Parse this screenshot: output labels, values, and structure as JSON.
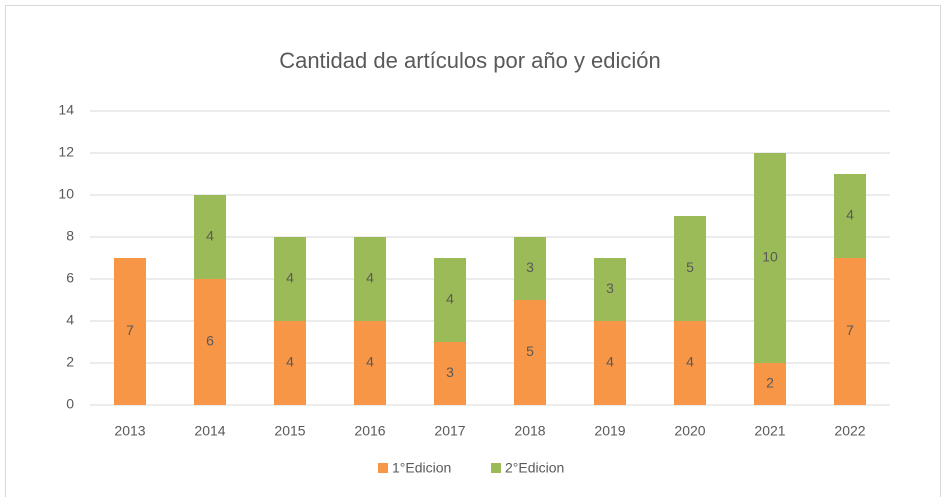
{
  "chart_data": {
    "type": "stacked_bar",
    "title": "Cantidad de artículos por año y edición",
    "categories": [
      "2013",
      "2014",
      "2015",
      "2016",
      "2017",
      "2018",
      "2019",
      "2020",
      "2021",
      "2022"
    ],
    "series": [
      {
        "name": "1°Edicion",
        "color": "#f79646",
        "values": [
          7,
          6,
          4,
          4,
          3,
          5,
          4,
          4,
          2,
          7
        ]
      },
      {
        "name": "2°Edicion",
        "color": "#9bbb59",
        "values": [
          null,
          4,
          4,
          4,
          4,
          3,
          3,
          5,
          10,
          4
        ]
      }
    ],
    "ylim": [
      0,
      14
    ],
    "yticks": [
      0,
      2,
      4,
      6,
      8,
      10,
      12,
      14
    ],
    "grid": true,
    "legend": "bottom"
  }
}
